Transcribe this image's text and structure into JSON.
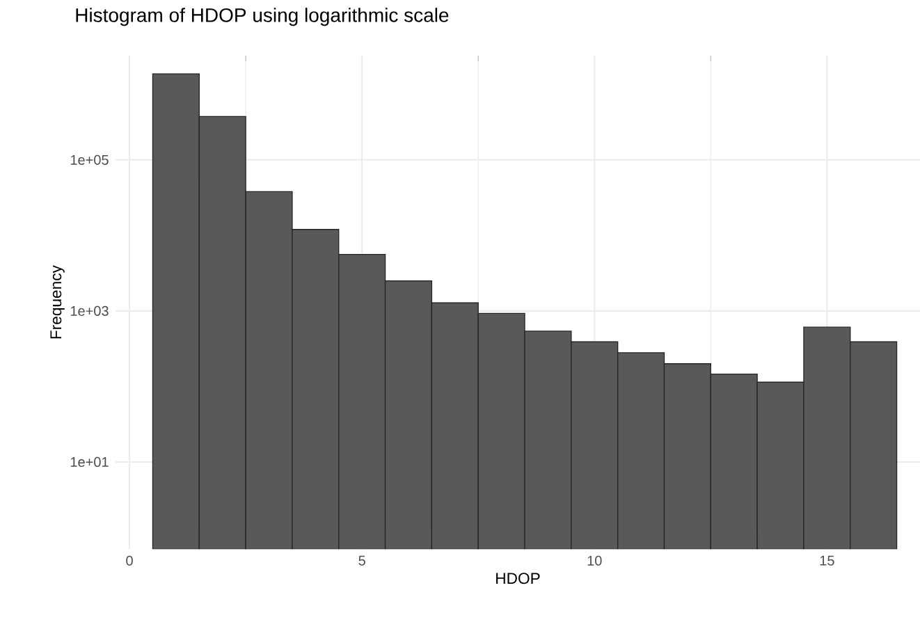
{
  "chart_data": {
    "type": "histogram",
    "title": "Histogram of HDOP using logarithmic scale",
    "xlabel": "HDOP",
    "ylabel": "Frequency",
    "bins": [
      0.5,
      1.5,
      2.5,
      3.5,
      4.5,
      5.5,
      6.5,
      7.5,
      8.5,
      9.5,
      10.5,
      11.5,
      12.5,
      13.5,
      14.5,
      15.5,
      16.5
    ],
    "values": [
      1380000,
      376000,
      38000,
      12000,
      5600,
      2500,
      1280,
      930,
      540,
      390,
      280,
      200,
      146,
      114,
      610,
      390
    ],
    "color": "#595959",
    "log": "y",
    "grid": true,
    "xlim": [
      -0.3,
      17.0
    ],
    "xticks": [
      0,
      5,
      10,
      15
    ],
    "ylim": [
      0.7,
      2400000
    ],
    "yticks": [
      {
        "value": 10,
        "label": "1e+01"
      },
      {
        "value": 1000,
        "label": "1e+03"
      },
      {
        "value": 100000,
        "label": "1e+05"
      }
    ]
  }
}
